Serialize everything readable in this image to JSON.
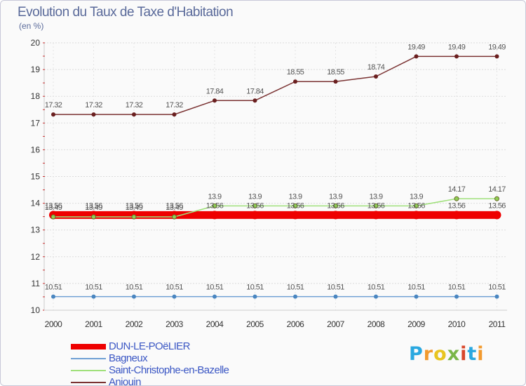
{
  "chart_data": {
    "type": "line",
    "title": "Evolution du Taux de Taxe d'Habitation",
    "unit_label": "(en %)",
    "categories": [
      "2000",
      "2001",
      "2002",
      "2003",
      "2004",
      "2005",
      "2006",
      "2007",
      "2008",
      "2009",
      "2010",
      "2011"
    ],
    "ylim": [
      10,
      20
    ],
    "yticks": [
      "10",
      "11",
      "12",
      "13",
      "14",
      "15",
      "16",
      "17",
      "18",
      "19",
      "20"
    ],
    "series": [
      {
        "name": "DUN-LE-POëLIER",
        "color": "#ee0000",
        "values": [
          13.56,
          13.56,
          13.56,
          13.56,
          13.56,
          13.56,
          13.56,
          13.56,
          13.56,
          13.56,
          13.56,
          13.56
        ],
        "labels": [
          "13.56",
          "13.56",
          "13.56",
          "13.56",
          "13.56",
          "13.56",
          "13.56",
          "13.56",
          "13.56",
          "13.56",
          "13.56",
          "13.56"
        ]
      },
      {
        "name": "Bagneux",
        "color": "#6fa0d4",
        "values": [
          10.51,
          10.51,
          10.51,
          10.51,
          10.51,
          10.51,
          10.51,
          10.51,
          10.51,
          10.51,
          10.51,
          10.51
        ],
        "labels": [
          "10.51",
          "10.51",
          "10.51",
          "10.51",
          "10.51",
          "10.51",
          "10.51",
          "10.51",
          "10.51",
          "10.51",
          "10.51",
          "10.51"
        ]
      },
      {
        "name": "Saint-Christophe-en-Bazelle",
        "color": "#9fe07a",
        "values": [
          13.49,
          13.49,
          13.49,
          13.49,
          13.9,
          13.9,
          13.9,
          13.9,
          13.9,
          13.9,
          14.17,
          14.17
        ],
        "labels": [
          "13.49",
          "13.49",
          "13.49",
          "13.49",
          "13.9",
          "13.9",
          "13.9",
          "13.9",
          "13.9",
          "13.9",
          "14.17",
          "14.17"
        ]
      },
      {
        "name": "Anjouin",
        "color": "#7a3232",
        "values": [
          17.32,
          17.32,
          17.32,
          17.32,
          17.84,
          17.84,
          18.55,
          18.55,
          18.74,
          19.49,
          19.49,
          19.49
        ],
        "labels": [
          "17.32",
          "17.32",
          "17.32",
          "17.32",
          "17.84",
          "17.84",
          "18.55",
          "18.55",
          "18.74",
          "19.49",
          "19.49",
          "19.49"
        ]
      }
    ]
  },
  "logo": {
    "letters": [
      "P",
      "r",
      "o",
      "x",
      "i",
      "t",
      "i"
    ],
    "colors": [
      "#2aa8e0",
      "#f29a2e",
      "#e8c520",
      "#7ab648",
      "#d9472b",
      "#2aa8e0",
      "#f29a2e"
    ]
  }
}
